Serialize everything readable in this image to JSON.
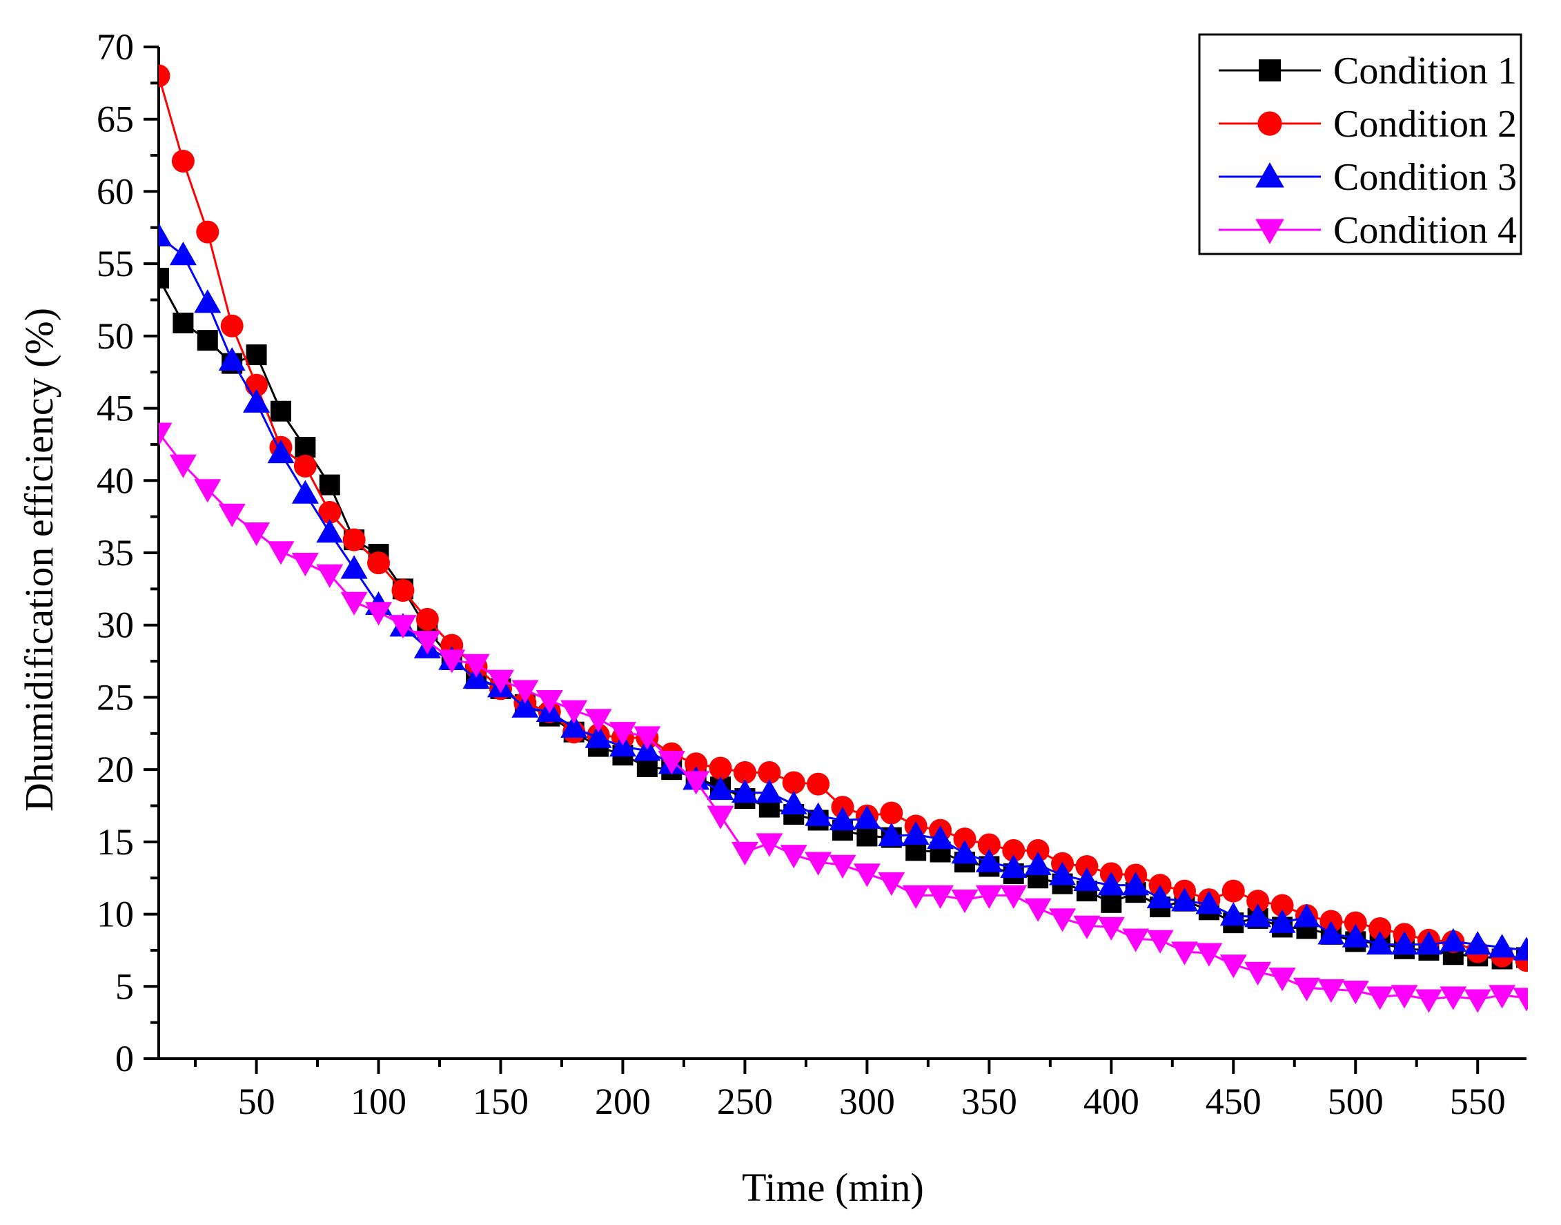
{
  "chart_data": {
    "type": "line",
    "title": "",
    "xlabel": "Time (min)",
    "ylabel": "Dhumidification efficiency (%)",
    "xlim": [
      10,
      570
    ],
    "ylim": [
      0,
      70
    ],
    "xticks": [
      50,
      100,
      150,
      200,
      250,
      300,
      350,
      400,
      450,
      500,
      550
    ],
    "xtick_labels": [
      "50",
      "100",
      "150",
      "200",
      "250",
      "300",
      "350",
      "400",
      "450",
      "500",
      "550"
    ],
    "yticks": [
      0,
      5,
      10,
      15,
      20,
      25,
      30,
      35,
      40,
      45,
      50,
      55,
      60,
      65,
      70
    ],
    "ytick_labels": [
      "0",
      "5",
      "10",
      "15",
      "20",
      "25",
      "30",
      "35",
      "40",
      "45",
      "50",
      "55",
      "60",
      "65",
      "70"
    ],
    "grid": false,
    "legend_position": "top-right",
    "x": [
      10,
      20,
      30,
      40,
      50,
      60,
      70,
      80,
      90,
      100,
      110,
      120,
      130,
      140,
      150,
      160,
      170,
      180,
      190,
      200,
      210,
      220,
      230,
      240,
      250,
      260,
      270,
      280,
      290,
      300,
      310,
      320,
      330,
      340,
      350,
      360,
      370,
      380,
      390,
      400,
      410,
      420,
      430,
      440,
      450,
      460,
      470,
      480,
      490,
      500,
      510,
      520,
      530,
      540,
      550,
      560,
      570
    ],
    "series": [
      {
        "name": "Condition 1",
        "color": "#000000",
        "marker": "square",
        "values": [
          54.0,
          50.9,
          49.7,
          48.1,
          48.7,
          44.8,
          42.3,
          39.7,
          35.9,
          34.9,
          32.5,
          29.7,
          27.6,
          26.3,
          25.6,
          24.5,
          23.7,
          22.6,
          21.6,
          21.0,
          20.2,
          20.0,
          19.4,
          18.8,
          18.0,
          17.4,
          16.9,
          16.5,
          15.8,
          15.4,
          15.3,
          14.4,
          14.3,
          13.6,
          13.3,
          12.8,
          12.5,
          12.1,
          11.6,
          10.8,
          11.5,
          10.5,
          10.9,
          10.3,
          9.4,
          9.7,
          9.1,
          9.0,
          8.6,
          8.1,
          8.0,
          7.6,
          7.5,
          7.2,
          7.1,
          6.9,
          7.0
        ]
      },
      {
        "name": "Condition 2",
        "color": "#ff0000",
        "marker": "circle",
        "values": [
          68.0,
          62.1,
          57.2,
          50.7,
          46.6,
          42.3,
          41.0,
          37.8,
          35.9,
          34.3,
          32.4,
          30.4,
          28.6,
          27.1,
          25.6,
          24.6,
          24.0,
          22.6,
          22.4,
          22.2,
          22.2,
          21.1,
          20.4,
          20.1,
          19.8,
          19.8,
          19.1,
          19.0,
          17.4,
          16.8,
          17.0,
          16.1,
          15.8,
          15.2,
          14.8,
          14.4,
          14.4,
          13.5,
          13.3,
          12.8,
          12.7,
          12.0,
          11.6,
          11.0,
          11.6,
          10.9,
          10.6,
          9.9,
          9.5,
          9.4,
          9.0,
          8.6,
          8.2,
          8.1,
          7.4,
          7.1,
          6.8
        ]
      },
      {
        "name": "Condition 3",
        "color": "#0000ff",
        "marker": "triangle-up",
        "values": [
          56.9,
          55.6,
          52.3,
          48.3,
          45.4,
          41.9,
          39.1,
          36.4,
          33.9,
          31.4,
          29.9,
          28.4,
          27.6,
          26.3,
          25.7,
          24.3,
          24.0,
          22.9,
          22.2,
          21.6,
          21.3,
          20.4,
          19.3,
          18.6,
          18.4,
          18.4,
          17.6,
          16.8,
          16.5,
          16.6,
          15.4,
          15.5,
          15.2,
          14.2,
          13.6,
          13.2,
          13.4,
          12.7,
          12.3,
          12.0,
          12.0,
          11.1,
          10.9,
          10.7,
          9.9,
          9.8,
          9.4,
          9.8,
          8.6,
          8.4,
          7.9,
          7.9,
          7.9,
          8.1,
          7.9,
          7.7,
          7.5
        ]
      },
      {
        "name": "Condition 4",
        "color": "#ff00ff",
        "marker": "triangle-down",
        "values": [
          43.3,
          41.1,
          39.4,
          37.7,
          36.4,
          35.1,
          34.3,
          33.5,
          31.6,
          30.9,
          30.0,
          28.9,
          27.6,
          27.3,
          26.2,
          25.5,
          24.8,
          24.1,
          23.5,
          22.6,
          22.3,
          20.6,
          19.2,
          16.8,
          14.3,
          14.9,
          14.1,
          13.6,
          13.4,
          12.8,
          12.2,
          11.3,
          11.3,
          11.0,
          11.3,
          11.3,
          10.4,
          9.7,
          9.2,
          9.1,
          8.3,
          8.2,
          7.4,
          7.3,
          6.5,
          6.0,
          5.6,
          4.9,
          4.8,
          4.7,
          4.3,
          4.4,
          4.1,
          4.3,
          4.1,
          4.4,
          4.2
        ]
      }
    ]
  }
}
